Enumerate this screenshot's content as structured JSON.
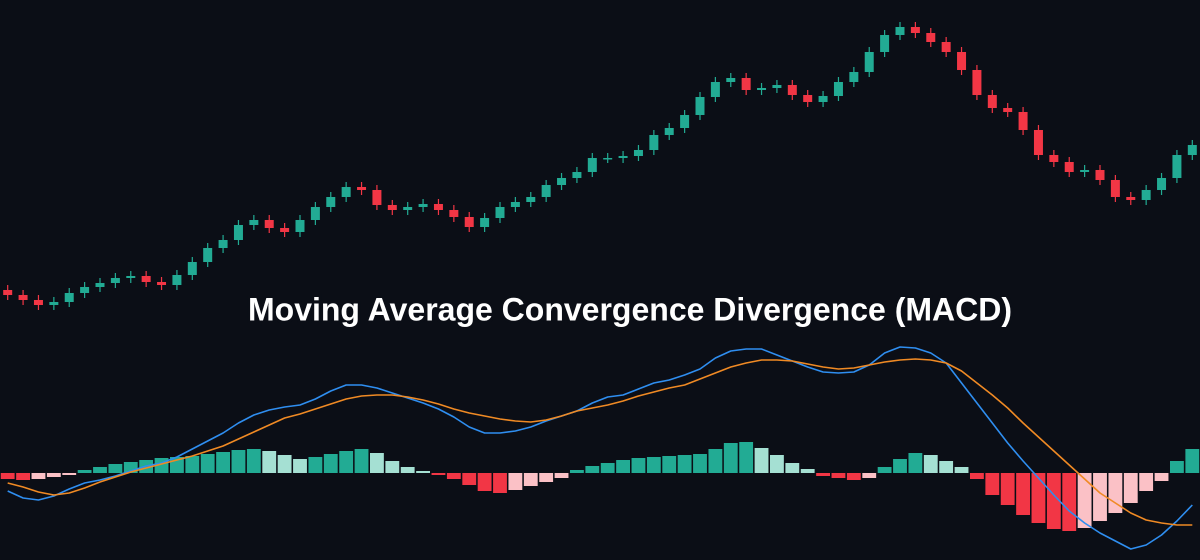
{
  "chart_data": [
    {
      "type": "candlestick",
      "title": "Moving Average Convergence Divergence (MACD)",
      "categories": [
        null,
        null,
        null,
        null,
        null,
        null,
        null,
        null,
        null,
        null,
        null,
        null,
        null,
        null,
        null,
        null,
        null,
        null,
        null,
        null,
        null,
        null,
        null,
        null,
        null,
        null,
        null,
        null,
        null,
        null,
        null,
        null,
        null,
        null,
        null,
        null,
        null,
        null,
        null,
        null,
        null,
        null,
        null,
        null,
        null,
        null,
        null,
        null,
        null,
        null,
        null,
        null,
        null,
        null,
        null,
        null,
        null,
        null,
        null,
        null,
        null,
        null,
        null,
        null,
        null,
        null,
        null,
        null,
        null,
        null,
        null,
        null,
        null,
        null,
        null,
        null,
        null,
        null
      ],
      "open": [
        30,
        25,
        20,
        15,
        18,
        27,
        33,
        37,
        42,
        44,
        38,
        35,
        45,
        58,
        72,
        80,
        95,
        100,
        92,
        88,
        100,
        113,
        123,
        133,
        130,
        115,
        110,
        113,
        116,
        110,
        103,
        93,
        102,
        113,
        118,
        123,
        135,
        142,
        148,
        162,
        162,
        164,
        170,
        185,
        192,
        205,
        223,
        238,
        242,
        230,
        232,
        235,
        225,
        218,
        224,
        238,
        248,
        268,
        285,
        293,
        287,
        278,
        268,
        250,
        225,
        212,
        208,
        190,
        165,
        158,
        148,
        150,
        140,
        123,
        120,
        130,
        142,
        165
      ],
      "high": [
        35,
        30,
        25,
        23,
        32,
        38,
        42,
        47,
        49,
        49,
        43,
        50,
        63,
        77,
        85,
        100,
        105,
        105,
        97,
        105,
        118,
        128,
        138,
        138,
        135,
        120,
        118,
        121,
        121,
        115,
        108,
        107,
        118,
        123,
        128,
        140,
        147,
        153,
        167,
        167,
        169,
        175,
        190,
        197,
        210,
        228,
        243,
        247,
        247,
        237,
        240,
        240,
        230,
        229,
        243,
        253,
        273,
        290,
        298,
        298,
        292,
        283,
        273,
        255,
        230,
        217,
        213,
        195,
        170,
        163,
        155,
        155,
        145,
        128,
        135,
        147,
        170,
        180
      ],
      "low": [
        20,
        15,
        10,
        10,
        13,
        22,
        28,
        32,
        37,
        33,
        30,
        30,
        40,
        53,
        67,
        75,
        90,
        87,
        83,
        83,
        95,
        108,
        118,
        125,
        110,
        105,
        105,
        108,
        105,
        98,
        88,
        88,
        97,
        108,
        113,
        118,
        130,
        137,
        143,
        157,
        157,
        159,
        165,
        180,
        187,
        200,
        218,
        233,
        225,
        225,
        227,
        220,
        213,
        213,
        219,
        233,
        243,
        263,
        280,
        282,
        273,
        263,
        245,
        220,
        207,
        203,
        185,
        160,
        153,
        143,
        143,
        135,
        118,
        115,
        115,
        125,
        137,
        160
      ],
      "close": [
        25,
        20,
        15,
        18,
        27,
        33,
        37,
        42,
        44,
        38,
        35,
        45,
        58,
        72,
        80,
        95,
        100,
        92,
        88,
        100,
        113,
        123,
        133,
        130,
        115,
        110,
        113,
        116,
        110,
        103,
        93,
        102,
        113,
        118,
        123,
        135,
        142,
        148,
        162,
        162,
        164,
        170,
        185,
        192,
        205,
        223,
        238,
        242,
        230,
        232,
        235,
        225,
        218,
        224,
        238,
        248,
        268,
        285,
        293,
        287,
        278,
        268,
        250,
        225,
        212,
        208,
        190,
        165,
        158,
        148,
        150,
        140,
        123,
        120,
        130,
        142,
        165,
        175
      ],
      "up_color": "#22ab94",
      "down_color": "#f23645",
      "ylim": [
        0,
        320
      ]
    },
    {
      "type": "macd",
      "categories": [
        null,
        null,
        null,
        null,
        null,
        null,
        null,
        null,
        null,
        null,
        null,
        null,
        null,
        null,
        null,
        null,
        null,
        null,
        null,
        null,
        null,
        null,
        null,
        null,
        null,
        null,
        null,
        null,
        null,
        null,
        null,
        null,
        null,
        null,
        null,
        null,
        null,
        null,
        null,
        null,
        null,
        null,
        null,
        null,
        null,
        null,
        null,
        null,
        null,
        null,
        null,
        null,
        null,
        null,
        null,
        null,
        null,
        null,
        null,
        null,
        null,
        null,
        null,
        null,
        null,
        null,
        null,
        null,
        null,
        null,
        null,
        null,
        null,
        null,
        null,
        null,
        null,
        null
      ],
      "series": [
        {
          "color": "#2f8ef0",
          "values": [
            -18,
            -25,
            -27,
            -23,
            -16,
            -10,
            -7,
            -3,
            2,
            7,
            10,
            16,
            24,
            32,
            40,
            50,
            58,
            63,
            66,
            68,
            74,
            82,
            88,
            88,
            85,
            80,
            75,
            70,
            64,
            56,
            46,
            40,
            40,
            42,
            46,
            52,
            57,
            62,
            70,
            76,
            78,
            84,
            90,
            93,
            98,
            104,
            115,
            122,
            124,
            124,
            118,
            112,
            106,
            101,
            100,
            101,
            108,
            120,
            126,
            125,
            120,
            110,
            90,
            70,
            50,
            30,
            12,
            -5,
            -22,
            -38,
            -50,
            -60,
            -68,
            -76,
            -72,
            -62,
            -48,
            -32
          ]
        },
        {
          "color": "#f08a24",
          "values": [
            -10,
            -14,
            -19,
            -22,
            -20,
            -15,
            -9,
            -4,
            1,
            5,
            9,
            13,
            17,
            22,
            27,
            34,
            41,
            48,
            55,
            59,
            64,
            69,
            74,
            77,
            78,
            78,
            76,
            73,
            69,
            64,
            60,
            57,
            54,
            52,
            51,
            53,
            57,
            62,
            65,
            68,
            72,
            77,
            81,
            85,
            88,
            94,
            100,
            106,
            110,
            113,
            113,
            112,
            109,
            106,
            104,
            105,
            108,
            111,
            113,
            114,
            113,
            110,
            102,
            90,
            78,
            65,
            50,
            36,
            22,
            8,
            -6,
            -20,
            -30,
            -40,
            -47,
            -50,
            -52,
            -52
          ]
        }
      ],
      "histogram": [
        -6,
        -7,
        -6,
        -4,
        -2,
        3,
        6,
        9,
        11,
        13,
        15,
        16,
        17,
        19,
        21,
        23,
        24,
        22,
        18,
        14,
        16,
        19,
        22,
        24,
        20,
        12,
        6,
        2,
        -2,
        -6,
        -12,
        -18,
        -20,
        -17,
        -13,
        -9,
        -5,
        3,
        7,
        10,
        13,
        15,
        16,
        17,
        18,
        19,
        24,
        30,
        31,
        25,
        18,
        10,
        4,
        -3,
        -5,
        -7,
        -5,
        6,
        14,
        20,
        18,
        12,
        6,
        -6,
        -22,
        -32,
        -42,
        -50,
        -56,
        -58,
        -55,
        -48,
        -40,
        -30,
        -18,
        -8,
        12,
        24
      ],
      "histogram_colors": [
        "#22ab94",
        "#a5e0d3",
        "#f23645",
        "#fbc1c6"
      ],
      "ylim": [
        -87,
        127
      ]
    }
  ]
}
